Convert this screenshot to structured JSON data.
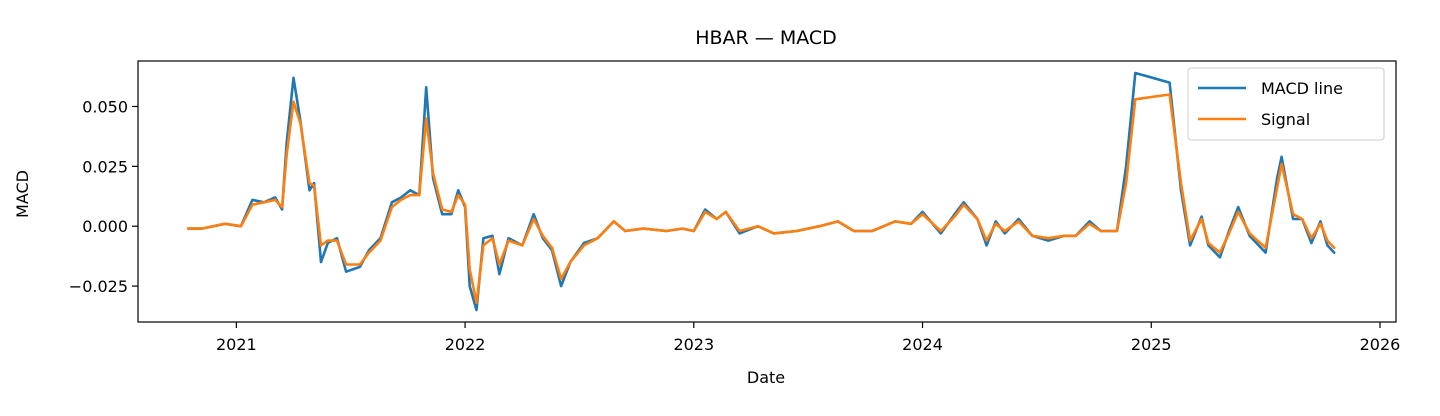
{
  "chart_data": {
    "type": "line",
    "title": "HBAR — MACD",
    "xlabel": "Date",
    "ylabel": "MACD",
    "xlim": [
      2020.57,
      2026.07
    ],
    "ylim": [
      -0.04,
      0.069
    ],
    "x_ticks": [
      2021,
      2022,
      2023,
      2024,
      2025,
      2026
    ],
    "x_tick_labels": [
      "2021",
      "2022",
      "2023",
      "2024",
      "2025",
      "2026"
    ],
    "y_ticks": [
      -0.025,
      0.0,
      0.025,
      0.05
    ],
    "y_tick_labels": [
      "−0.025",
      "0.000",
      "0.025",
      "0.050"
    ],
    "legend_position": "top-right",
    "colors": {
      "macd": "#1f77b4",
      "signal": "#ff7f0e"
    },
    "series": [
      {
        "name": "MACD line",
        "color": "#1f77b4",
        "points": [
          [
            2020.79,
            -0.001
          ],
          [
            2020.85,
            -0.001
          ],
          [
            2020.95,
            0.001
          ],
          [
            2021.02,
            0.0
          ],
          [
            2021.07,
            0.011
          ],
          [
            2021.12,
            0.01
          ],
          [
            2021.17,
            0.012
          ],
          [
            2021.2,
            0.007
          ],
          [
            2021.22,
            0.035
          ],
          [
            2021.25,
            0.062
          ],
          [
            2021.28,
            0.044
          ],
          [
            2021.32,
            0.015
          ],
          [
            2021.34,
            0.018
          ],
          [
            2021.37,
            -0.015
          ],
          [
            2021.4,
            -0.007
          ],
          [
            2021.44,
            -0.005
          ],
          [
            2021.48,
            -0.019
          ],
          [
            2021.54,
            -0.017
          ],
          [
            2021.58,
            -0.01
          ],
          [
            2021.63,
            -0.005
          ],
          [
            2021.68,
            0.01
          ],
          [
            2021.72,
            0.012
          ],
          [
            2021.76,
            0.015
          ],
          [
            2021.8,
            0.013
          ],
          [
            2021.83,
            0.058
          ],
          [
            2021.86,
            0.02
          ],
          [
            2021.9,
            0.005
          ],
          [
            2021.94,
            0.005
          ],
          [
            2021.97,
            0.015
          ],
          [
            2022.0,
            0.008
          ],
          [
            2022.02,
            -0.025
          ],
          [
            2022.05,
            -0.035
          ],
          [
            2022.08,
            -0.005
          ],
          [
            2022.12,
            -0.004
          ],
          [
            2022.15,
            -0.02
          ],
          [
            2022.19,
            -0.005
          ],
          [
            2022.25,
            -0.008
          ],
          [
            2022.3,
            0.005
          ],
          [
            2022.34,
            -0.005
          ],
          [
            2022.38,
            -0.01
          ],
          [
            2022.42,
            -0.025
          ],
          [
            2022.46,
            -0.015
          ],
          [
            2022.52,
            -0.007
          ],
          [
            2022.58,
            -0.005
          ],
          [
            2022.65,
            0.002
          ],
          [
            2022.7,
            -0.002
          ],
          [
            2022.78,
            -0.001
          ],
          [
            2022.88,
            -0.002
          ],
          [
            2022.95,
            -0.001
          ],
          [
            2023.0,
            -0.002
          ],
          [
            2023.05,
            0.007
          ],
          [
            2023.1,
            0.003
          ],
          [
            2023.14,
            0.006
          ],
          [
            2023.2,
            -0.003
          ],
          [
            2023.28,
            0.0
          ],
          [
            2023.35,
            -0.003
          ],
          [
            2023.45,
            -0.002
          ],
          [
            2023.55,
            0.0
          ],
          [
            2023.63,
            0.002
          ],
          [
            2023.7,
            -0.002
          ],
          [
            2023.78,
            -0.002
          ],
          [
            2023.88,
            0.002
          ],
          [
            2023.95,
            0.001
          ],
          [
            2024.0,
            0.006
          ],
          [
            2024.08,
            -0.003
          ],
          [
            2024.14,
            0.005
          ],
          [
            2024.18,
            0.01
          ],
          [
            2024.24,
            0.003
          ],
          [
            2024.28,
            -0.008
          ],
          [
            2024.32,
            0.002
          ],
          [
            2024.36,
            -0.003
          ],
          [
            2024.42,
            0.003
          ],
          [
            2024.48,
            -0.004
          ],
          [
            2024.55,
            -0.006
          ],
          [
            2024.62,
            -0.004
          ],
          [
            2024.67,
            -0.004
          ],
          [
            2024.73,
            0.002
          ],
          [
            2024.78,
            -0.002
          ],
          [
            2024.85,
            -0.002
          ],
          [
            2024.89,
            0.025
          ],
          [
            2024.93,
            0.064
          ],
          [
            2025.08,
            0.06
          ],
          [
            2025.13,
            0.015
          ],
          [
            2025.17,
            -0.008
          ],
          [
            2025.22,
            0.004
          ],
          [
            2025.25,
            -0.008
          ],
          [
            2025.3,
            -0.013
          ],
          [
            2025.34,
            -0.002
          ],
          [
            2025.38,
            0.008
          ],
          [
            2025.43,
            -0.004
          ],
          [
            2025.5,
            -0.011
          ],
          [
            2025.55,
            0.02
          ],
          [
            2025.57,
            0.029
          ],
          [
            2025.62,
            0.003
          ],
          [
            2025.66,
            0.003
          ],
          [
            2025.7,
            -0.007
          ],
          [
            2025.74,
            0.002
          ],
          [
            2025.77,
            -0.008
          ],
          [
            2025.8,
            -0.011
          ]
        ]
      },
      {
        "name": "Signal",
        "color": "#ff7f0e",
        "points": [
          [
            2020.79,
            -0.001
          ],
          [
            2020.85,
            -0.001
          ],
          [
            2020.95,
            0.001
          ],
          [
            2021.02,
            0.0
          ],
          [
            2021.07,
            0.009
          ],
          [
            2021.12,
            0.01
          ],
          [
            2021.17,
            0.011
          ],
          [
            2021.2,
            0.008
          ],
          [
            2021.22,
            0.03
          ],
          [
            2021.25,
            0.052
          ],
          [
            2021.28,
            0.043
          ],
          [
            2021.32,
            0.018
          ],
          [
            2021.34,
            0.017
          ],
          [
            2021.37,
            -0.008
          ],
          [
            2021.4,
            -0.006
          ],
          [
            2021.44,
            -0.006
          ],
          [
            2021.48,
            -0.016
          ],
          [
            2021.54,
            -0.016
          ],
          [
            2021.58,
            -0.011
          ],
          [
            2021.63,
            -0.006
          ],
          [
            2021.68,
            0.008
          ],
          [
            2021.72,
            0.011
          ],
          [
            2021.76,
            0.013
          ],
          [
            2021.8,
            0.013
          ],
          [
            2021.83,
            0.045
          ],
          [
            2021.86,
            0.022
          ],
          [
            2021.9,
            0.007
          ],
          [
            2021.94,
            0.006
          ],
          [
            2021.97,
            0.013
          ],
          [
            2022.0,
            0.009
          ],
          [
            2022.02,
            -0.018
          ],
          [
            2022.05,
            -0.032
          ],
          [
            2022.08,
            -0.008
          ],
          [
            2022.12,
            -0.005
          ],
          [
            2022.15,
            -0.016
          ],
          [
            2022.19,
            -0.006
          ],
          [
            2022.25,
            -0.008
          ],
          [
            2022.3,
            0.003
          ],
          [
            2022.34,
            -0.004
          ],
          [
            2022.38,
            -0.009
          ],
          [
            2022.42,
            -0.022
          ],
          [
            2022.46,
            -0.015
          ],
          [
            2022.52,
            -0.008
          ],
          [
            2022.58,
            -0.005
          ],
          [
            2022.65,
            0.002
          ],
          [
            2022.7,
            -0.002
          ],
          [
            2022.78,
            -0.001
          ],
          [
            2022.88,
            -0.002
          ],
          [
            2022.95,
            -0.001
          ],
          [
            2023.0,
            -0.002
          ],
          [
            2023.05,
            0.006
          ],
          [
            2023.1,
            0.003
          ],
          [
            2023.14,
            0.006
          ],
          [
            2023.2,
            -0.002
          ],
          [
            2023.28,
            0.0
          ],
          [
            2023.35,
            -0.003
          ],
          [
            2023.45,
            -0.002
          ],
          [
            2023.55,
            0.0
          ],
          [
            2023.63,
            0.002
          ],
          [
            2023.7,
            -0.002
          ],
          [
            2023.78,
            -0.002
          ],
          [
            2023.88,
            0.002
          ],
          [
            2023.95,
            0.001
          ],
          [
            2024.0,
            0.005
          ],
          [
            2024.08,
            -0.002
          ],
          [
            2024.14,
            0.004
          ],
          [
            2024.18,
            0.009
          ],
          [
            2024.24,
            0.003
          ],
          [
            2024.28,
            -0.006
          ],
          [
            2024.32,
            0.001
          ],
          [
            2024.36,
            -0.002
          ],
          [
            2024.42,
            0.002
          ],
          [
            2024.48,
            -0.004
          ],
          [
            2024.55,
            -0.005
          ],
          [
            2024.62,
            -0.004
          ],
          [
            2024.67,
            -0.004
          ],
          [
            2024.73,
            0.001
          ],
          [
            2024.78,
            -0.002
          ],
          [
            2024.85,
            -0.002
          ],
          [
            2024.89,
            0.018
          ],
          [
            2024.93,
            0.053
          ],
          [
            2025.08,
            0.055
          ],
          [
            2025.13,
            0.018
          ],
          [
            2025.17,
            -0.006
          ],
          [
            2025.22,
            0.003
          ],
          [
            2025.25,
            -0.007
          ],
          [
            2025.3,
            -0.011
          ],
          [
            2025.34,
            -0.003
          ],
          [
            2025.38,
            0.006
          ],
          [
            2025.43,
            -0.003
          ],
          [
            2025.5,
            -0.009
          ],
          [
            2025.55,
            0.016
          ],
          [
            2025.57,
            0.026
          ],
          [
            2025.62,
            0.005
          ],
          [
            2025.66,
            0.003
          ],
          [
            2025.7,
            -0.005
          ],
          [
            2025.74,
            0.001
          ],
          [
            2025.77,
            -0.006
          ],
          [
            2025.8,
            -0.009
          ]
        ]
      }
    ]
  }
}
